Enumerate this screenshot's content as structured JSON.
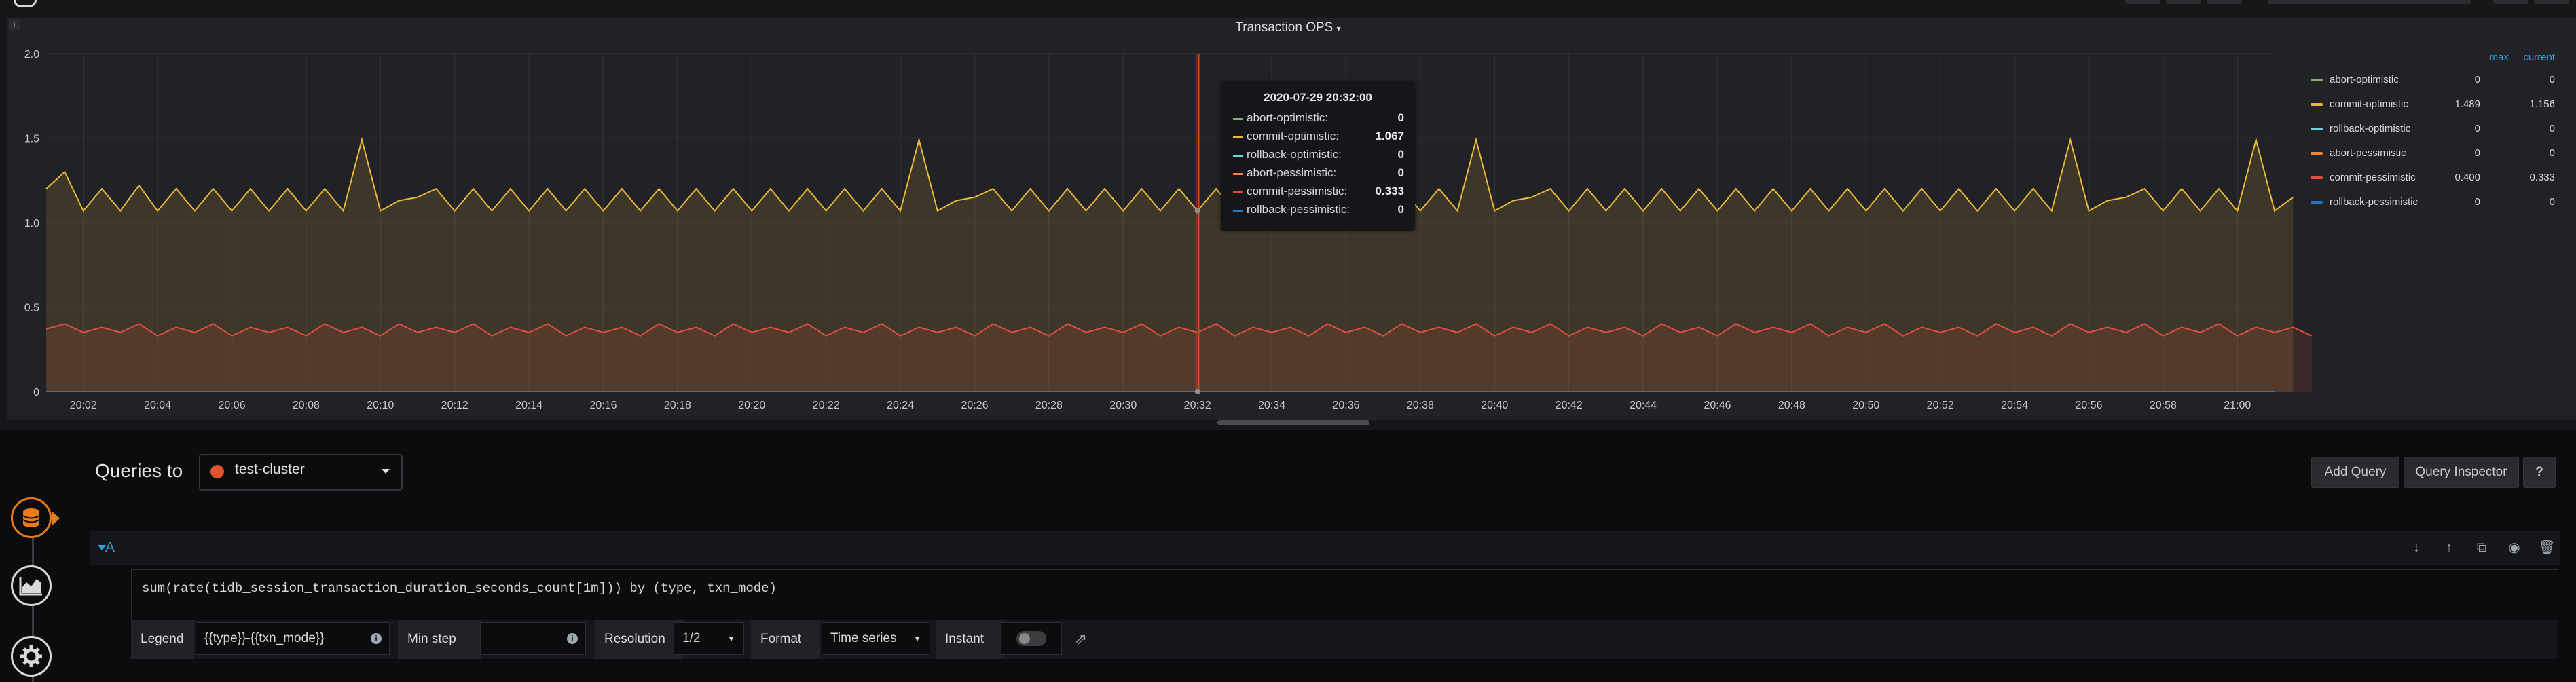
{
  "panel": {
    "title": "Transaction OPS",
    "info_label": "i"
  },
  "legend": {
    "col_max": "max",
    "col_current": "current",
    "items": [
      {
        "name": "abort-optimistic",
        "color": "#7eb26d",
        "max": "0",
        "current": "0"
      },
      {
        "name": "commit-optimistic",
        "color": "#eab839",
        "max": "1.489",
        "current": "1.156"
      },
      {
        "name": "rollback-optimistic",
        "color": "#6ed0e0",
        "max": "0",
        "current": "0"
      },
      {
        "name": "abort-pessimistic",
        "color": "#ef843c",
        "max": "0",
        "current": "0"
      },
      {
        "name": "commit-pessimistic",
        "color": "#e24d42",
        "max": "0.400",
        "current": "0.333"
      },
      {
        "name": "rollback-pessimistic",
        "color": "#1f78c1",
        "max": "0",
        "current": "0"
      }
    ]
  },
  "tooltip": {
    "time": "2020-07-29 20:32:00",
    "rows": [
      {
        "name": "abort-optimistic:",
        "value": "0",
        "color": "#7eb26d"
      },
      {
        "name": "commit-optimistic:",
        "value": "1.067",
        "color": "#eab839"
      },
      {
        "name": "rollback-optimistic:",
        "value": "0",
        "color": "#6ed0e0"
      },
      {
        "name": "abort-pessimistic:",
        "value": "0",
        "color": "#ef843c"
      },
      {
        "name": "commit-pessimistic:",
        "value": "0.333",
        "color": "#e24d42"
      },
      {
        "name": "rollback-pessimistic:",
        "value": "0",
        "color": "#1f78c1"
      }
    ]
  },
  "chart_data": {
    "type": "area",
    "title": "Transaction OPS",
    "ylim": [
      0,
      2.0
    ],
    "yticks": [
      "0",
      "0.5",
      "1.0",
      "1.5",
      "2.0"
    ],
    "xtick_labels": [
      "20:02",
      "20:04",
      "20:06",
      "20:08",
      "20:10",
      "20:12",
      "20:14",
      "20:16",
      "20:18",
      "20:20",
      "20:22",
      "20:24",
      "20:26",
      "20:28",
      "20:30",
      "20:32",
      "20:34",
      "20:36",
      "20:38",
      "20:40",
      "20:42",
      "20:44",
      "20:46",
      "20:48",
      "20:50",
      "20:52",
      "20:54",
      "20:56",
      "20:58",
      "21:00"
    ],
    "x_start": "20:01",
    "x_end": "21:01",
    "x_step_minutes": 0.5,
    "hover_time": "20:32",
    "grid": true,
    "legend_position": "right",
    "series": [
      {
        "name": "abort-optimistic",
        "color": "#7eb26d",
        "values": [
          0
        ]
      },
      {
        "name": "commit-optimistic",
        "color": "#eab839",
        "fill": true,
        "values": [
          1.2,
          1.3,
          1.07,
          1.2,
          1.07,
          1.22,
          1.07,
          1.2,
          1.07,
          1.2,
          1.07,
          1.2,
          1.07,
          1.2,
          1.07,
          1.2,
          1.07,
          1.49,
          1.07,
          1.13,
          1.15,
          1.2,
          1.07,
          1.2,
          1.07,
          1.2,
          1.07,
          1.2,
          1.07,
          1.2,
          1.07,
          1.2,
          1.07,
          1.2,
          1.07,
          1.2,
          1.07,
          1.2,
          1.07,
          1.2,
          1.07,
          1.2,
          1.07,
          1.2,
          1.07,
          1.2,
          1.07,
          1.49,
          1.07,
          1.13,
          1.15,
          1.2,
          1.07,
          1.2,
          1.07,
          1.2,
          1.07,
          1.2,
          1.07,
          1.2,
          1.07,
          1.2,
          1.07,
          1.2,
          1.07,
          1.2,
          1.07,
          1.2,
          1.07,
          1.2,
          1.07,
          1.2,
          1.07,
          1.2,
          1.07,
          1.2,
          1.07,
          1.49,
          1.07,
          1.13,
          1.15,
          1.2,
          1.07,
          1.2,
          1.07,
          1.2,
          1.07,
          1.2,
          1.07,
          1.2,
          1.07,
          1.2,
          1.07,
          1.2,
          1.07,
          1.2,
          1.07,
          1.2,
          1.07,
          1.2,
          1.07,
          1.2,
          1.07,
          1.2,
          1.07,
          1.2,
          1.07,
          1.2,
          1.07,
          1.49,
          1.07,
          1.13,
          1.15,
          1.2,
          1.07,
          1.2,
          1.07,
          1.2,
          1.07,
          1.49,
          1.07,
          1.15
        ]
      },
      {
        "name": "rollback-optimistic",
        "color": "#6ed0e0",
        "values": [
          0
        ]
      },
      {
        "name": "abort-pessimistic",
        "color": "#ef843c",
        "values": [
          0
        ]
      },
      {
        "name": "commit-pessimistic",
        "color": "#e24d42",
        "fill": true,
        "values": [
          0.37,
          0.4,
          0.35,
          0.38,
          0.35,
          0.4,
          0.33,
          0.38,
          0.35,
          0.4,
          0.33,
          0.38,
          0.35,
          0.38,
          0.33,
          0.4,
          0.35,
          0.38,
          0.33,
          0.4,
          0.35,
          0.38,
          0.35,
          0.4,
          0.33,
          0.38,
          0.35,
          0.4,
          0.33,
          0.38,
          0.35,
          0.38,
          0.33,
          0.4,
          0.35,
          0.38,
          0.33,
          0.4,
          0.35,
          0.38,
          0.35,
          0.4,
          0.33,
          0.38,
          0.35,
          0.4,
          0.33,
          0.38,
          0.35,
          0.38,
          0.33,
          0.4,
          0.35,
          0.38,
          0.33,
          0.4,
          0.35,
          0.38,
          0.35,
          0.4,
          0.33,
          0.38,
          0.35,
          0.4,
          0.33,
          0.38,
          0.35,
          0.38,
          0.33,
          0.4,
          0.35,
          0.38,
          0.33,
          0.4,
          0.35,
          0.38,
          0.35,
          0.4,
          0.33,
          0.38,
          0.35,
          0.4,
          0.33,
          0.38,
          0.35,
          0.38,
          0.33,
          0.4,
          0.35,
          0.38,
          0.33,
          0.4,
          0.35,
          0.38,
          0.35,
          0.4,
          0.33,
          0.38,
          0.35,
          0.4,
          0.33,
          0.38,
          0.35,
          0.38,
          0.33,
          0.4,
          0.35,
          0.38,
          0.33,
          0.4,
          0.35,
          0.38,
          0.35,
          0.4,
          0.33,
          0.38,
          0.35,
          0.4,
          0.33,
          0.38,
          0.35,
          0.38,
          0.33
        ]
      },
      {
        "name": "rollback-pessimistic",
        "color": "#1f78c1",
        "values": [
          0
        ]
      }
    ]
  },
  "editor": {
    "queries_to": "Queries to",
    "datasource": "test-cluster",
    "add_query": "Add Query",
    "query_inspector": "Query Inspector",
    "help": "?",
    "query_ref": "A",
    "expr_prefix": "sum(rate(tidb_session_transaction_duration_seconds_count[1m])) by (type, txn_mode)",
    "legend_label": "Legend",
    "legend_value": "{{type}}-{{txn_mode}}",
    "min_step_label": "Min step",
    "min_step_value": "",
    "resolution_label": "Resolution",
    "resolution_value": "1/2",
    "format_label": "Format",
    "format_value": "Time series",
    "instant_label": "Instant"
  }
}
